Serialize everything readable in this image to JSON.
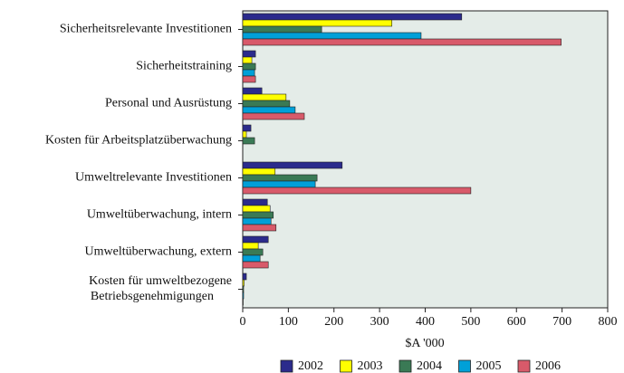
{
  "chart_data": {
    "type": "bar",
    "orientation": "horizontal",
    "categories": [
      "Sicherheitsrelevante Investitionen",
      "Sicherheitstraining",
      "Personal und Ausrüstung",
      "Kosten für Arbeitsplatzüberwachung",
      "Umweltrelevante Investitionen",
      "Umweltüberwachung, intern",
      "Umweltüberwachung, extern",
      "Kosten für umweltbezogene\nBetriebsgenehmigungen"
    ],
    "series": [
      {
        "name": "2002",
        "color": "#2b2b8c",
        "values": [
          480,
          28,
          42,
          18,
          218,
          54,
          56,
          8
        ]
      },
      {
        "name": "2003",
        "color": "#ffff00",
        "values": [
          327,
          20,
          95,
          8,
          71,
          60,
          34,
          3
        ]
      },
      {
        "name": "2004",
        "color": "#3a7a55",
        "values": [
          173,
          28,
          103,
          26,
          163,
          67,
          44,
          2
        ]
      },
      {
        "name": "2005",
        "color": "#00a0d8",
        "values": [
          391,
          26,
          115,
          0,
          159,
          62,
          38,
          2
        ]
      },
      {
        "name": "2006",
        "color": "#d85a6a",
        "values": [
          698,
          28,
          135,
          0,
          500,
          73,
          56,
          1
        ]
      }
    ],
    "x_label": "$A '000",
    "xlim": [
      0,
      800
    ],
    "xticks": [
      0,
      100,
      200,
      300,
      400,
      500,
      600,
      700,
      800
    ],
    "legend": "bottom",
    "grid": false
  }
}
